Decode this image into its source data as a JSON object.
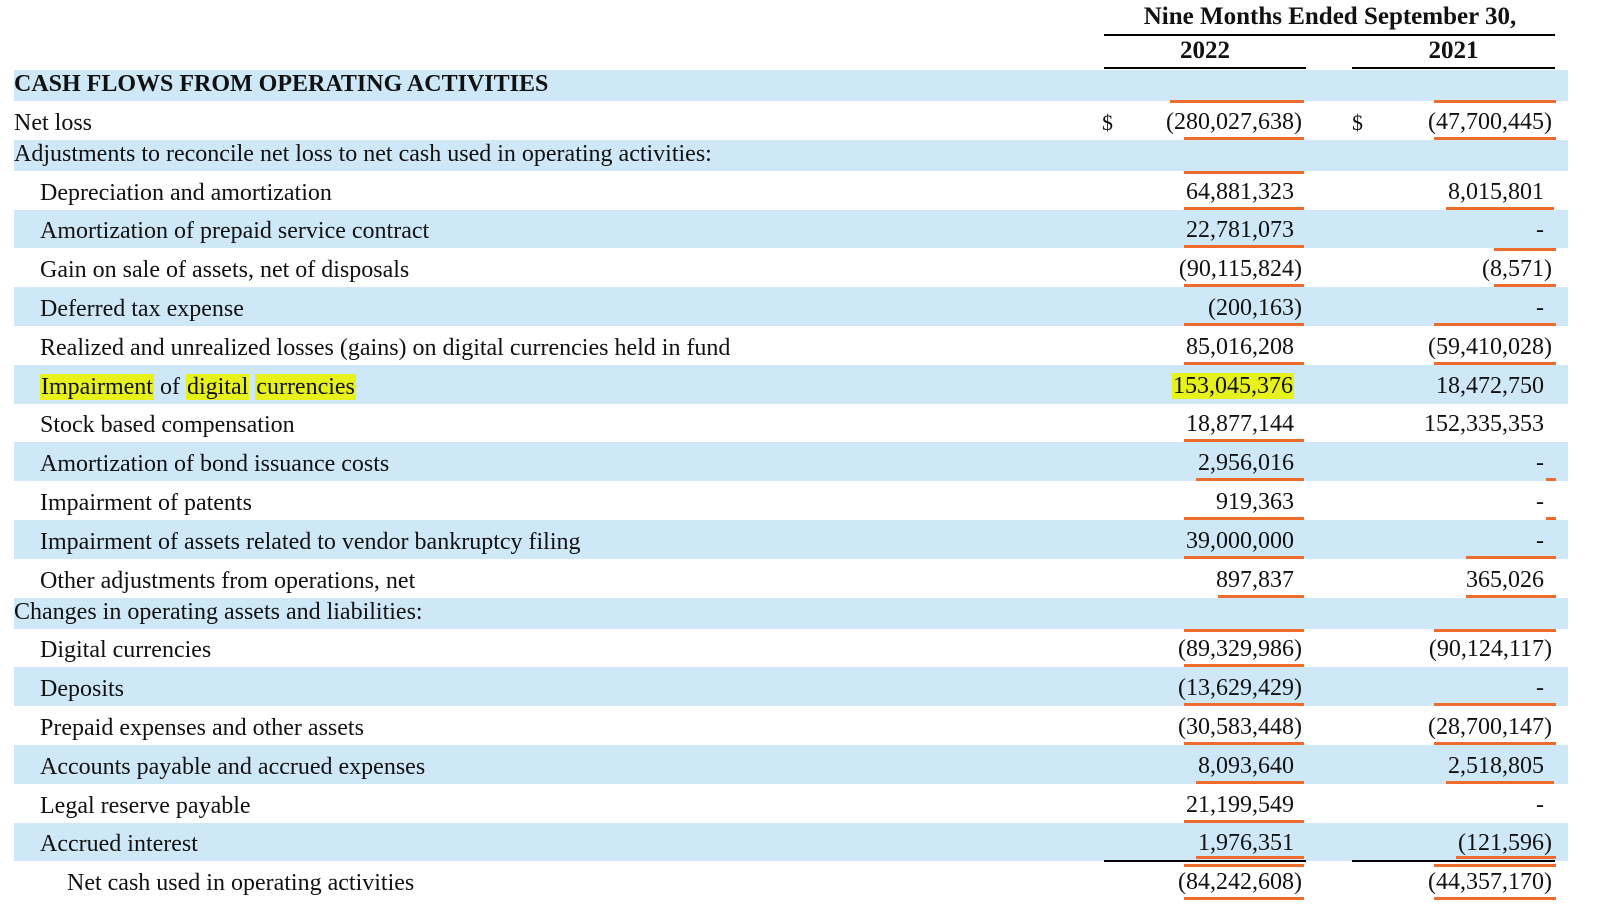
{
  "header": {
    "period": "Nine Months Ended September 30,",
    "year_current": "2022",
    "year_prior": "2021"
  },
  "rows": [
    {
      "label": "CASH FLOWS FROM OPERATING ACTIVITIES",
      "v2022": "",
      "v2021": ""
    },
    {
      "label": "Net loss",
      "currency": "$",
      "v2022": "(280,027,638",
      "v2021": "(47,700,445"
    },
    {
      "label": "Adjustments to reconcile net loss to net cash used in operating activities:",
      "v2022": "",
      "v2021": ""
    },
    {
      "label": "Depreciation and amortization",
      "v2022": "64,881,323",
      "v2021": "8,015,801"
    },
    {
      "label": "Amortization of prepaid service contract",
      "v2022": "22,781,073",
      "v2021": "-"
    },
    {
      "label": "Gain on sale of assets, net of disposals",
      "v2022": "(90,115,824",
      "v2021": "(8,571"
    },
    {
      "label": "Deferred tax expense",
      "v2022": "(200,163",
      "v2021": "-"
    },
    {
      "label": "Realized and unrealized losses (gains) on digital currencies held in fund",
      "v2022": "85,016,208",
      "v2021": "(59,410,028"
    },
    {
      "label_parts": [
        "Impairment",
        "of",
        "digital",
        "currencies"
      ],
      "v2022": "153,045,376",
      "v2021": "18,472,750"
    },
    {
      "label": "Stock based compensation",
      "v2022": "18,877,144",
      "v2021": "152,335,353"
    },
    {
      "label": "Amortization of bond issuance costs",
      "v2022": "2,956,016",
      "v2021": "-"
    },
    {
      "label": "Impairment of patents",
      "v2022": "919,363",
      "v2021": "-"
    },
    {
      "label": "Impairment of assets related to vendor bankruptcy filing",
      "v2022": "39,000,000",
      "v2021": "-"
    },
    {
      "label": "Other adjustments from operations, net",
      "v2022": "897,837",
      "v2021": "365,026"
    },
    {
      "label": "Changes in operating assets and liabilities:",
      "v2022": "",
      "v2021": ""
    },
    {
      "label": "Digital currencies",
      "v2022": "(89,329,986",
      "v2021": "(90,124,117"
    },
    {
      "label": "Deposits",
      "v2022": "(13,629,429",
      "v2021": "-"
    },
    {
      "label": "Prepaid expenses and other assets",
      "v2022": "(30,583,448",
      "v2021": "(28,700,147"
    },
    {
      "label": "Accounts payable and accrued expenses",
      "v2022": "8,093,640",
      "v2021": "2,518,805"
    },
    {
      "label": "Legal reserve payable",
      "v2022": "21,199,549",
      "v2021": "-"
    },
    {
      "label": "Accrued interest",
      "v2022": "1,976,351",
      "v2021": "(121,596"
    },
    {
      "label": "Net cash used in operating activities",
      "v2022": "(84,242,608",
      "v2021": "(44,357,170"
    }
  ],
  "paren_close": ")",
  "colors": {
    "row_shade": "#cfe8f8",
    "underline": "#ec6b2d",
    "highlight": "#e6f21a"
  }
}
